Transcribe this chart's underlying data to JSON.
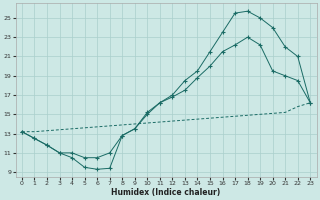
{
  "xlabel": "Humidex (Indice chaleur)",
  "bg_color": "#cde8e5",
  "line_color": "#1a6b65",
  "grid_color": "#aacfcc",
  "xlim": [
    -0.5,
    23.5
  ],
  "ylim": [
    8.5,
    26.5
  ],
  "xticks": [
    0,
    1,
    2,
    3,
    4,
    5,
    6,
    7,
    8,
    9,
    10,
    11,
    12,
    13,
    14,
    15,
    16,
    17,
    18,
    19,
    20,
    21,
    22,
    23
  ],
  "yticks": [
    9,
    11,
    13,
    15,
    17,
    19,
    21,
    23,
    25
  ],
  "line1_x": [
    0,
    1,
    2,
    3,
    4,
    5,
    6,
    7,
    8,
    9,
    10,
    11,
    12,
    13,
    14,
    15,
    16,
    17,
    18,
    19,
    20,
    21,
    22,
    23
  ],
  "line1_y": [
    13.2,
    12.5,
    11.8,
    11.0,
    10.5,
    9.5,
    9.3,
    9.4,
    12.8,
    13.5,
    15.0,
    16.2,
    17.0,
    18.5,
    19.5,
    21.5,
    23.5,
    25.5,
    25.7,
    25.0,
    24.0,
    22.0,
    21.0,
    16.2
  ],
  "line2_x": [
    0,
    1,
    2,
    3,
    4,
    5,
    6,
    7,
    8,
    9,
    10,
    11,
    12,
    13,
    14,
    15,
    16,
    17,
    18,
    19,
    20,
    21,
    22,
    23
  ],
  "line2_y": [
    13.2,
    12.5,
    11.8,
    11.0,
    11.0,
    10.5,
    10.5,
    11.0,
    12.8,
    13.5,
    15.2,
    16.2,
    16.8,
    17.5,
    18.8,
    20.0,
    21.5,
    22.2,
    23.0,
    22.2,
    19.5,
    19.0,
    18.5,
    16.2
  ],
  "line3_x": [
    0,
    1,
    2,
    3,
    4,
    5,
    6,
    7,
    8,
    9,
    10,
    11,
    12,
    13,
    14,
    15,
    16,
    17,
    18,
    19,
    20,
    21,
    22,
    23
  ],
  "line3_y": [
    13.2,
    13.2,
    13.3,
    13.4,
    13.5,
    13.6,
    13.7,
    13.8,
    13.9,
    14.0,
    14.1,
    14.2,
    14.3,
    14.4,
    14.5,
    14.6,
    14.7,
    14.8,
    14.9,
    15.0,
    15.1,
    15.2,
    15.8,
    16.2
  ]
}
